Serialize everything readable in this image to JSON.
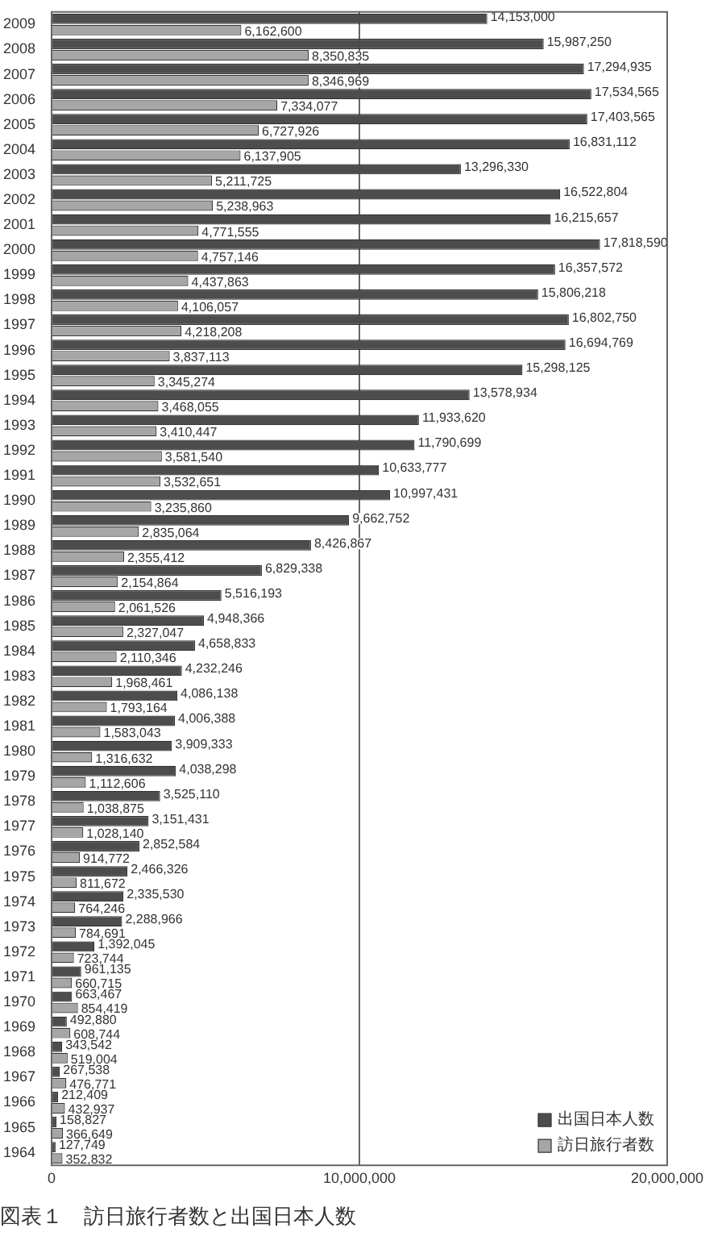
{
  "chart_data": {
    "type": "bar",
    "orientation": "horizontal",
    "title": "図表１　訪日旅行者数と出国日本人数",
    "categories": [
      "2009",
      "2008",
      "2007",
      "2006",
      "2005",
      "2004",
      "2003",
      "2002",
      "2001",
      "2000",
      "1999",
      "1998",
      "1997",
      "1996",
      "1995",
      "1994",
      "1993",
      "1992",
      "1991",
      "1990",
      "1989",
      "1988",
      "1987",
      "1986",
      "1985",
      "1984",
      "1983",
      "1982",
      "1981",
      "1980",
      "1979",
      "1978",
      "1977",
      "1976",
      "1975",
      "1974",
      "1973",
      "1972",
      "1971",
      "1970",
      "1969",
      "1968",
      "1967",
      "1966",
      "1965",
      "1964"
    ],
    "series": [
      {
        "name": "出国日本人数",
        "color": "#4d4d4d",
        "values": [
          14153000,
          15987250,
          17294935,
          17534565,
          17403565,
          16831112,
          13296330,
          16522804,
          16215657,
          17818590,
          16357572,
          15806218,
          16802750,
          16694769,
          15298125,
          13578934,
          11933620,
          11790699,
          10633777,
          10997431,
          9662752,
          8426867,
          6829338,
          5516193,
          4948366,
          4658833,
          4232246,
          4086138,
          4006388,
          3909333,
          4038298,
          3525110,
          3151431,
          2852584,
          2466326,
          2335530,
          2288966,
          1392045,
          961135,
          663467,
          492880,
          343542,
          267538,
          212409,
          158827,
          127749
        ],
        "value_labels": [
          "14,153,000",
          "15,987,250",
          "17,294,935",
          "17,534,565",
          "17,403,565",
          "16,831,112",
          "13,296,330",
          "16,522,804",
          "16,215,657",
          "17,818,590",
          "16,357,572",
          "15,806,218",
          "16,802,750",
          "16,694,769",
          "15,298,125",
          "13,578,934",
          "11,933,620",
          "11,790,699",
          "10,633,777",
          "10,997,431",
          "9,662,752",
          "8,426,867",
          "6,829,338",
          "5,516,193",
          "4,948,366",
          "4,658,833",
          "4,232,246",
          "4,086,138",
          "4,006,388",
          "3,909,333",
          "4,038,298",
          "3,525,110",
          "3,151,431",
          "2,852,584",
          "2,466,326",
          "2,335,530",
          "2,288,966",
          "1,392,045",
          "961,135",
          "663,467",
          "492,880",
          "343,542",
          "267,538",
          "212,409",
          "158,827",
          "127,749"
        ]
      },
      {
        "name": "訪日旅行者数",
        "color": "#a6a6a6",
        "values": [
          6162600,
          8350835,
          8346969,
          7334077,
          6727926,
          6137905,
          5211725,
          5238963,
          4771555,
          4757146,
          4437863,
          4106057,
          4218208,
          3837113,
          3345274,
          3468055,
          3410447,
          3581540,
          3532651,
          3235860,
          2835064,
          2355412,
          2154864,
          2061526,
          2327047,
          2110346,
          1968461,
          1793164,
          1583043,
          1316632,
          1112606,
          1038875,
          1028140,
          914772,
          811672,
          764246,
          784691,
          723744,
          660715,
          854419,
          608744,
          519004,
          476771,
          432937,
          366649,
          352832
        ],
        "value_labels": [
          "6,162,600",
          "8,350,835",
          "8,346,969",
          "7,334,077",
          "6,727,926",
          "6,137,905",
          "5,211,725",
          "5,238,963",
          "4,771,555",
          "4,757,146",
          "4,437,863",
          "4,106,057",
          "4,218,208",
          "3,837,113",
          "3,345,274",
          "3,468,055",
          "3,410,447",
          "3,581,540",
          "3,532,651",
          "3,235,860",
          "2,835,064",
          "2,355,412",
          "2,154,864",
          "2,061,526",
          "2,327,047",
          "2,110,346",
          "1,968,461",
          "1,793,164",
          "1,583,043",
          "1,316,632",
          "1,112,606",
          "1,038,875",
          "1,028,140",
          "914,772",
          "811,672",
          "764,246",
          "784,691",
          "723,744",
          "660,715",
          "854,419",
          "608,744",
          "519,004",
          "476,771",
          "432,937",
          "366,649",
          "352,832"
        ]
      }
    ],
    "xlim": [
      0,
      20000000
    ],
    "xticks": [
      0,
      {
        "value": 10000000,
        "label": "10,000,000"
      },
      {
        "value": 20000000,
        "label": "20,000,000"
      }
    ],
    "grid": "x",
    "legend": "bottom right"
  }
}
